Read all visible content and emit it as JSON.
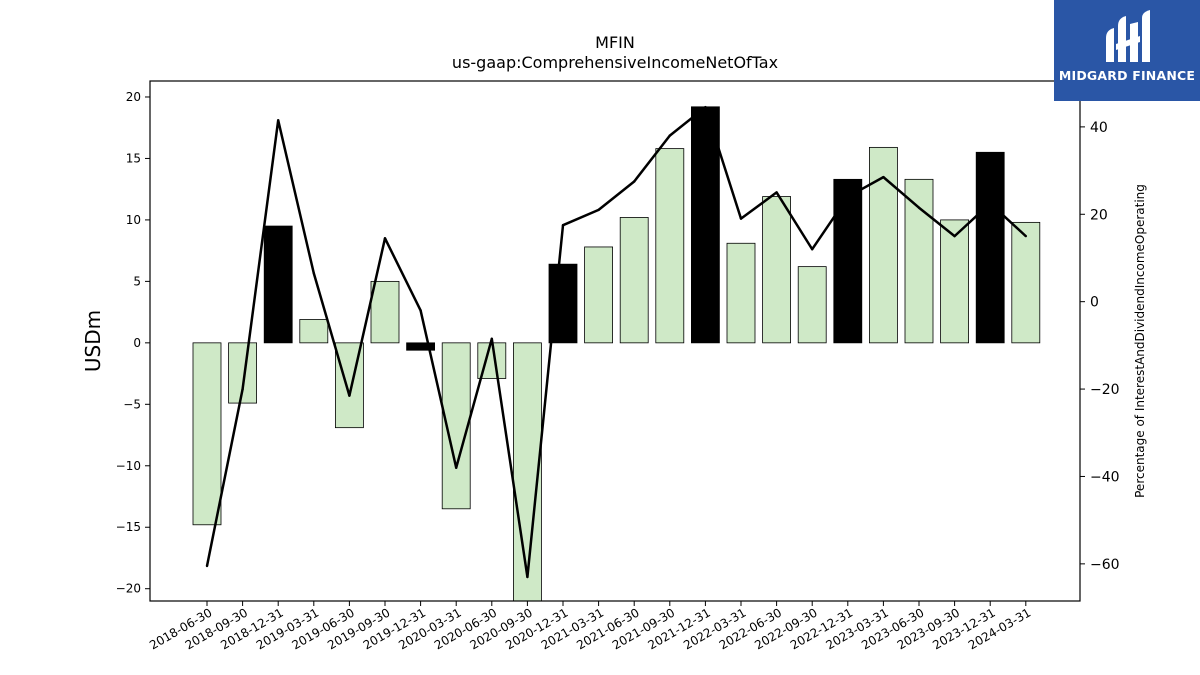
{
  "chart_data": {
    "type": "bar+line",
    "title": "MFIN",
    "subtitle": "us-gaap:ComprehensiveIncomeNetOfTax",
    "ylabel": "USDm",
    "y2label": "Percentage of InterestAndDividendIncomeOperating",
    "ylim": [
      -21,
      21.3
    ],
    "y2lim": [
      -68.5,
      50.5
    ],
    "yticks": [
      -20,
      -15,
      -10,
      -5,
      0,
      5,
      10,
      15,
      20
    ],
    "y2ticks": [
      -60,
      -40,
      -20,
      0,
      20,
      40
    ],
    "categories": [
      "2018-06-30",
      "2018-09-30",
      "2018-12-31",
      "2019-03-31",
      "2019-06-30",
      "2019-09-30",
      "2019-12-31",
      "2020-03-31",
      "2020-06-30",
      "2020-09-30",
      "2020-12-31",
      "2021-03-31",
      "2021-06-30",
      "2021-09-30",
      "2021-12-31",
      "2022-03-31",
      "2022-06-30",
      "2022-09-30",
      "2022-12-31",
      "2023-03-31",
      "2023-06-30",
      "2023-09-30",
      "2023-12-31",
      "2024-03-31"
    ],
    "bars": [
      -14.8,
      -4.9,
      9.5,
      1.9,
      -6.9,
      5.0,
      -0.6,
      -13.5,
      -2.9,
      -21.5,
      6.4,
      7.8,
      10.2,
      15.8,
      19.2,
      8.1,
      11.9,
      6.2,
      13.3,
      15.9,
      13.3,
      10.0,
      15.5,
      9.8
    ],
    "bar_highlight": [
      false,
      false,
      true,
      false,
      false,
      false,
      true,
      false,
      false,
      false,
      true,
      false,
      false,
      false,
      true,
      false,
      false,
      false,
      true,
      false,
      false,
      false,
      true,
      false
    ],
    "line": [
      -60.5,
      -20,
      41.5,
      6.5,
      -21.5,
      14.5,
      -2,
      -38,
      -8.5,
      -63,
      17.5,
      21,
      27.5,
      38,
      44.5,
      19,
      25,
      12,
      24,
      28.5,
      21.5,
      15,
      22.5,
      15
    ],
    "colors": {
      "bar": "#cfe9c7",
      "bar_highlight": "#000000",
      "line": "#000000"
    }
  },
  "logo": {
    "text": "MIDGARD FINANCE"
  }
}
